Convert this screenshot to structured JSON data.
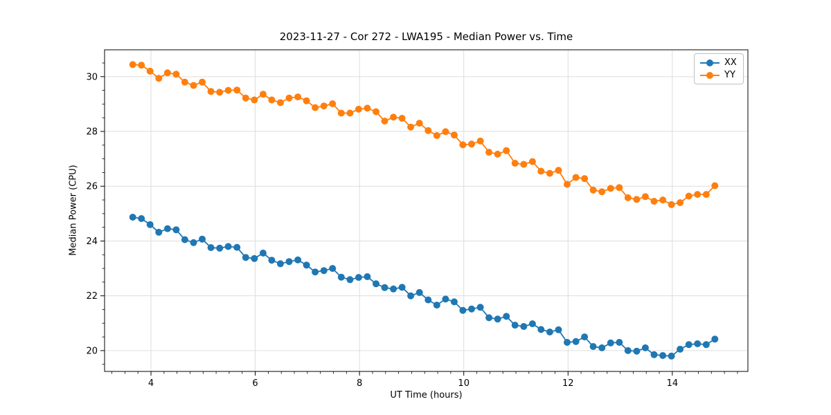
{
  "title": "2023-11-27 - Cor 272 - LWA195 - Median Power vs. Time",
  "legend": {
    "items": [
      {
        "label": "XX",
        "color": "#1f77b4"
      },
      {
        "label": "YY",
        "color": "#ff7f0e"
      }
    ]
  },
  "chart_data": {
    "type": "line",
    "title": "2023-11-27 - Cor 272 - LWA195 - Median Power vs. Time",
    "xlabel": "UT Time (hours)",
    "ylabel": "Median Power (CPU)",
    "xlim": [
      3.11,
      15.45
    ],
    "ylim": [
      19.24,
      30.98
    ],
    "x_ticks": [
      4,
      6,
      8,
      10,
      12,
      14
    ],
    "y_ticks": [
      20,
      22,
      24,
      26,
      28,
      30
    ],
    "x_minor_step": 0.25,
    "y_minor_step": 0.5,
    "grid": true,
    "grid_color": "#dddddd",
    "legend_position": "upper right",
    "marker": "o",
    "x": [
      3.65,
      3.817,
      3.983,
      4.15,
      4.317,
      4.483,
      4.65,
      4.817,
      4.983,
      5.15,
      5.317,
      5.483,
      5.65,
      5.817,
      5.983,
      6.15,
      6.317,
      6.483,
      6.65,
      6.817,
      6.983,
      7.15,
      7.317,
      7.483,
      7.65,
      7.817,
      7.983,
      8.15,
      8.317,
      8.483,
      8.65,
      8.817,
      8.983,
      9.15,
      9.317,
      9.483,
      9.65,
      9.817,
      9.983,
      10.15,
      10.317,
      10.483,
      10.65,
      10.817,
      10.983,
      11.15,
      11.317,
      11.483,
      11.65,
      11.817,
      11.983,
      12.15,
      12.317,
      12.483,
      12.65,
      12.817,
      12.983,
      13.15,
      13.317,
      13.483,
      13.65,
      13.817,
      13.983,
      14.15,
      14.317,
      14.483,
      14.65,
      14.817
    ],
    "series": [
      {
        "name": "XX",
        "color": "#1f77b4",
        "values": [
          24.87,
          24.82,
          24.6,
          24.32,
          24.45,
          24.41,
          24.05,
          23.94,
          24.07,
          23.76,
          23.74,
          23.8,
          23.77,
          23.4,
          23.36,
          23.56,
          23.3,
          23.17,
          23.25,
          23.31,
          23.12,
          22.87,
          22.92,
          23.0,
          22.68,
          22.59,
          22.67,
          22.7,
          22.44,
          22.3,
          22.25,
          22.31,
          22.0,
          22.12,
          21.85,
          21.66,
          21.88,
          21.78,
          21.47,
          21.52,
          21.58,
          21.2,
          21.15,
          21.25,
          20.93,
          20.88,
          20.98,
          20.77,
          20.68,
          20.76,
          20.3,
          20.33,
          20.5,
          20.15,
          20.1,
          20.28,
          20.3,
          20.0,
          19.98,
          20.1,
          19.85,
          19.82,
          19.8,
          20.05,
          20.22,
          20.25,
          20.22,
          20.42
        ]
      },
      {
        "name": "YY",
        "color": "#ff7f0e",
        "values": [
          30.44,
          30.42,
          30.2,
          29.94,
          30.14,
          30.09,
          29.8,
          29.68,
          29.8,
          29.46,
          29.43,
          29.5,
          29.51,
          29.22,
          29.15,
          29.36,
          29.15,
          29.05,
          29.22,
          29.26,
          29.12,
          28.87,
          28.93,
          29.01,
          28.67,
          28.67,
          28.81,
          28.85,
          28.72,
          28.38,
          28.52,
          28.48,
          28.16,
          28.3,
          28.03,
          27.85,
          27.99,
          27.87,
          27.51,
          27.54,
          27.65,
          27.24,
          27.17,
          27.3,
          26.84,
          26.8,
          26.9,
          26.55,
          26.47,
          26.58,
          26.07,
          26.32,
          26.28,
          25.86,
          25.8,
          25.92,
          25.95,
          25.58,
          25.52,
          25.62,
          25.45,
          25.5,
          25.33,
          25.4,
          25.64,
          25.7,
          25.7,
          26.02
        ]
      }
    ]
  }
}
